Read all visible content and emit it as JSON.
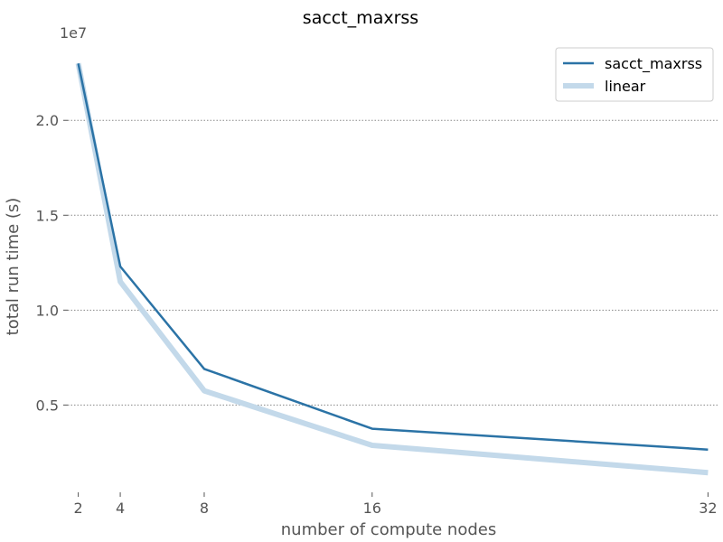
{
  "chart_data": {
    "type": "line",
    "title": "sacct_maxrss",
    "xlabel": "number of compute nodes",
    "ylabel": "total run time (s)",
    "y_offset_label": "1e7",
    "x": [
      2,
      4,
      8,
      16,
      32
    ],
    "x_ticks": [
      "2",
      "4",
      "8",
      "16",
      "32"
    ],
    "y_ticks": [
      {
        "value": 5000000,
        "label": "0.5"
      },
      {
        "value": 10000000,
        "label": "1.0"
      },
      {
        "value": 15000000,
        "label": "1.5"
      },
      {
        "value": 20000000,
        "label": "2.0"
      }
    ],
    "xlim": [
      1.5,
      32.5
    ],
    "ylim": [
      400000,
      24200000
    ],
    "grid": "horizontal-dotted",
    "legend_position": "top-right",
    "series": [
      {
        "name": "sacct_maxrss",
        "values": [
          23000000,
          12300000,
          6900000,
          3750000,
          2650000
        ],
        "color": "#2b73a6",
        "style": "thin"
      },
      {
        "name": "linear",
        "values": [
          23000000,
          11500000,
          5750000,
          2875000,
          1437500
        ],
        "color": "#c3d9ea",
        "style": "thick"
      }
    ]
  }
}
